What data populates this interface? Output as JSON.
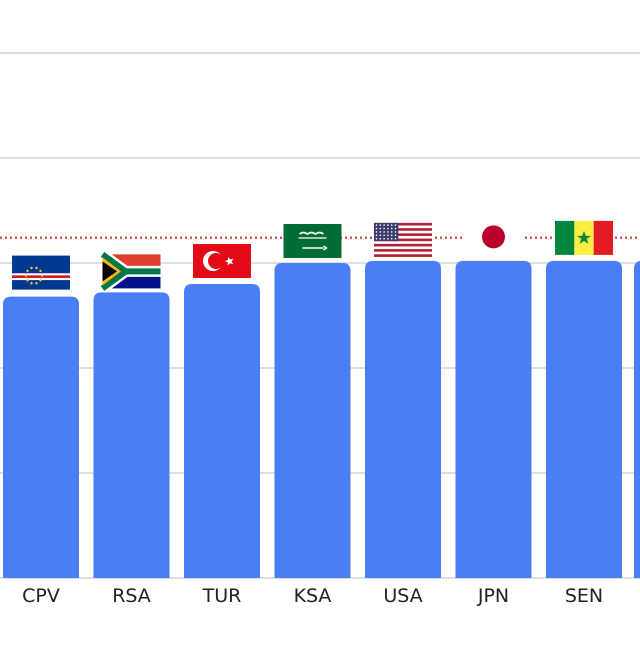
{
  "chart_data": {
    "type": "bar",
    "categories": [
      "CPV",
      "RSA",
      "TUR",
      "KSA",
      "USA",
      "JPN",
      "SEN"
    ],
    "flags": [
      "cape-verde-flag",
      "south-africa-flag",
      "turkey-flag",
      "saudi-arabia-flag",
      "usa-flag",
      "japan-flag",
      "senegal-flag"
    ],
    "values": [
      67,
      68,
      70,
      75,
      75.5,
      75.5,
      75.5
    ],
    "ylim": [
      0,
      125
    ],
    "reference_line": 81,
    "grid": true,
    "colors": {
      "bar": "#4a7ef5",
      "grid": "#cccccc",
      "reference": "#d9534f",
      "text": "#222222"
    }
  }
}
